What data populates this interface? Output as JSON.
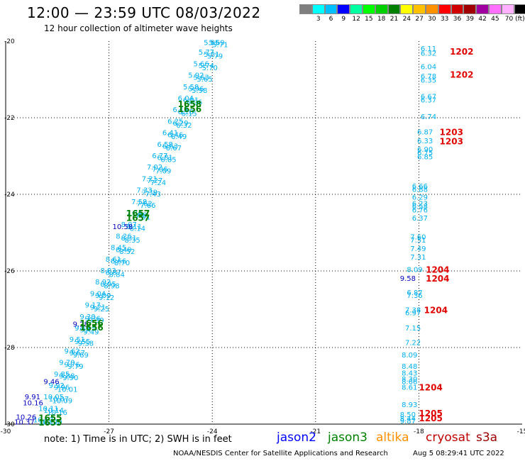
{
  "header": {
    "title": "12:00 — 23:59 UTC 08/03/2022",
    "subtitle": "12 hour collection of altimeter wave heights"
  },
  "colorbar": {
    "colors": [
      "#7f7f7f",
      "#00ffff",
      "#00bfff",
      "#0000ff",
      "#00ffa0",
      "#00ff00",
      "#00d000",
      "#008000",
      "#ffff00",
      "#ffc000",
      "#ff9000",
      "#ff0000",
      "#d00000",
      "#a00000",
      "#a000a0",
      "#ff70ff",
      "#ffb0ff",
      "#000000"
    ],
    "labels": [
      "3",
      "6",
      "9",
      "12",
      "15",
      "18",
      "21",
      "24",
      "27",
      "30",
      "33",
      "36",
      "39",
      "42",
      "45",
      "70 (ft)"
    ]
  },
  "footer": {
    "note": "note:  1) Time is in UTC;  2) SWH is in feet",
    "credit": "NOAA/NESDIS Center for Satellite Applications and Research",
    "generated": "Aug  5 08:29:41 UTC 2022",
    "satellites": [
      {
        "name": "jason2",
        "color": "#0000ff"
      },
      {
        "name": "jason3",
        "color": "#008000"
      },
      {
        "name": "altika",
        "color": "#ff9000"
      },
      {
        "name": "cryosat",
        "color": "#c00000"
      },
      {
        "name": "s3a",
        "color": "#a00000"
      }
    ]
  },
  "chart_data": {
    "type": "scatter",
    "xlim": [
      -30,
      -15
    ],
    "ylim": [
      -30,
      -20
    ],
    "xticks": [
      "-30",
      "-27",
      "-24",
      "-21",
      "-18",
      "-15"
    ],
    "yticks": [
      "-20",
      "-22",
      "-24",
      "-26",
      "-28",
      "-30"
    ],
    "grid": true,
    "track_labels": [
      {
        "x": -25.0,
        "y": -21.65,
        "text": "1658",
        "color": "#008000"
      },
      {
        "x": -25.0,
        "y": -21.78,
        "text": "1656",
        "color": "#008000"
      },
      {
        "x": -26.5,
        "y": -24.5,
        "text": "1657",
        "color": "#008000"
      },
      {
        "x": -26.5,
        "y": -24.62,
        "text": "1657",
        "color": "#008000"
      },
      {
        "x": -27.85,
        "y": -27.37,
        "text": "1656",
        "color": "#008000"
      },
      {
        "x": -27.85,
        "y": -27.48,
        "text": "1656",
        "color": "#008000"
      },
      {
        "x": -29.05,
        "y": -29.84,
        "text": "1655",
        "color": "#008000"
      },
      {
        "x": -29.05,
        "y": -29.96,
        "text": "1655",
        "color": "#008000"
      },
      {
        "x": -17.1,
        "y": -20.28,
        "text": "1202",
        "color": "#e00000"
      },
      {
        "x": -17.1,
        "y": -20.88,
        "text": "1202",
        "color": "#e00000"
      },
      {
        "x": -17.4,
        "y": -22.38,
        "text": "1203",
        "color": "#e00000"
      },
      {
        "x": -17.4,
        "y": -22.62,
        "text": "1203",
        "color": "#e00000"
      },
      {
        "x": -17.8,
        "y": -25.97,
        "text": "1204",
        "color": "#e00000"
      },
      {
        "x": -17.8,
        "y": -26.2,
        "text": "1204",
        "color": "#e00000"
      },
      {
        "x": -17.85,
        "y": -27.03,
        "text": "1204",
        "color": "#e00000"
      },
      {
        "x": -18.0,
        "y": -29.05,
        "text": "1204",
        "color": "#e00000"
      },
      {
        "x": -18.0,
        "y": -29.72,
        "text": "1205",
        "color": "#e00000"
      },
      {
        "x": -18.0,
        "y": -29.85,
        "text": "1205",
        "color": "#e00000"
      }
    ],
    "series": [
      {
        "color": "#00b0f0",
        "points": [
          {
            "x": -17.95,
            "y": -20.2,
            "value": "6.11"
          },
          {
            "x": -17.95,
            "y": -20.32,
            "value": "6.32"
          },
          {
            "x": -17.95,
            "y": -20.68,
            "value": "6.04"
          },
          {
            "x": -17.95,
            "y": -20.93,
            "value": "6.78"
          },
          {
            "x": -17.95,
            "y": -21.03,
            "value": "6.35"
          },
          {
            "x": -17.95,
            "y": -21.45,
            "value": "6.67"
          },
          {
            "x": -17.95,
            "y": -21.55,
            "value": "6.37"
          },
          {
            "x": -17.95,
            "y": -21.98,
            "value": "6.74"
          },
          {
            "x": -18.05,
            "y": -22.38,
            "value": "6.87"
          },
          {
            "x": -18.05,
            "y": -22.61,
            "value": "6.33"
          },
          {
            "x": -18.05,
            "y": -22.83,
            "value": "6.90"
          },
          {
            "x": -18.05,
            "y": -22.93,
            "value": "6.75"
          },
          {
            "x": -18.05,
            "y": -23.03,
            "value": "6.85"
          },
          {
            "x": -18.2,
            "y": -23.8,
            "value": "6.66"
          },
          {
            "x": -18.2,
            "y": -23.88,
            "value": "6.88"
          },
          {
            "x": -18.2,
            "y": -24.08,
            "value": "6.29"
          },
          {
            "x": -18.2,
            "y": -24.25,
            "value": "6.23"
          },
          {
            "x": -18.2,
            "y": -24.32,
            "value": "6.58"
          },
          {
            "x": -18.2,
            "y": -24.42,
            "value": "6.76"
          },
          {
            "x": -18.2,
            "y": -24.63,
            "value": "6.37"
          },
          {
            "x": -18.25,
            "y": -25.12,
            "value": "7.60"
          },
          {
            "x": -18.25,
            "y": -25.2,
            "value": "7.51"
          },
          {
            "x": -18.25,
            "y": -25.43,
            "value": "7.49"
          },
          {
            "x": -18.25,
            "y": -25.65,
            "value": "7.31"
          },
          {
            "x": -18.35,
            "y": -25.97,
            "value": "8.09"
          },
          {
            "x": -18.35,
            "y": -26.57,
            "value": "6.87"
          },
          {
            "x": -18.35,
            "y": -26.65,
            "value": "7.36"
          },
          {
            "x": -18.4,
            "y": -27.03,
            "value": "7.38"
          },
          {
            "x": -18.4,
            "y": -27.1,
            "value": "6.97"
          },
          {
            "x": -18.4,
            "y": -27.5,
            "value": "7.15"
          },
          {
            "x": -18.4,
            "y": -27.88,
            "value": "7.22"
          },
          {
            "x": -18.5,
            "y": -28.2,
            "value": "8.09"
          },
          {
            "x": -18.5,
            "y": -28.5,
            "value": "8.48"
          },
          {
            "x": -18.5,
            "y": -28.68,
            "value": "8.43"
          },
          {
            "x": -18.5,
            "y": -28.83,
            "value": "8.30"
          },
          {
            "x": -18.5,
            "y": -28.9,
            "value": "8.66"
          },
          {
            "x": -18.5,
            "y": -29.05,
            "value": "8.61"
          },
          {
            "x": -18.5,
            "y": -29.5,
            "value": "8.93"
          },
          {
            "x": -18.55,
            "y": -29.76,
            "value": "8.50"
          },
          {
            "x": -18.55,
            "y": -29.86,
            "value": "8.44"
          },
          {
            "x": -18.55,
            "y": -29.93,
            "value": "9.87"
          },
          {
            "x": -24.25,
            "y": -20.05,
            "value": "5.85"
          },
          {
            "x": -24.4,
            "y": -20.3,
            "value": "5.77"
          },
          {
            "x": -24.55,
            "y": -20.6,
            "value": "5.66"
          },
          {
            "x": -24.7,
            "y": -20.9,
            "value": "5.92"
          },
          {
            "x": -24.85,
            "y": -21.2,
            "value": "5.58"
          },
          {
            "x": -25.0,
            "y": -21.5,
            "value": "6.04"
          },
          {
            "x": -25.15,
            "y": -21.8,
            "value": "6.12"
          },
          {
            "x": -25.3,
            "y": -22.1,
            "value": "6.25"
          },
          {
            "x": -25.45,
            "y": -22.4,
            "value": "6.41"
          },
          {
            "x": -25.6,
            "y": -22.7,
            "value": "6.58"
          },
          {
            "x": -25.75,
            "y": -23.0,
            "value": "6.77"
          },
          {
            "x": -25.9,
            "y": -23.3,
            "value": "7.02"
          },
          {
            "x": -26.05,
            "y": -23.6,
            "value": "7.21"
          },
          {
            "x": -26.2,
            "y": -23.9,
            "value": "7.33"
          },
          {
            "x": -26.35,
            "y": -24.2,
            "value": "7.58"
          },
          {
            "x": -26.5,
            "y": -24.5,
            "value": "7.84"
          },
          {
            "x": -26.65,
            "y": -24.8,
            "value": "8.07"
          },
          {
            "x": -26.8,
            "y": -25.1,
            "value": "8.26"
          },
          {
            "x": -26.95,
            "y": -25.4,
            "value": "8.45"
          },
          {
            "x": -27.1,
            "y": -25.7,
            "value": "8.61"
          },
          {
            "x": -27.25,
            "y": -26.0,
            "value": "8.83"
          },
          {
            "x": -27.4,
            "y": -26.3,
            "value": "8.92"
          },
          {
            "x": -27.55,
            "y": -26.6,
            "value": "9.04"
          },
          {
            "x": -27.7,
            "y": -26.9,
            "value": "9.17"
          },
          {
            "x": -27.85,
            "y": -27.2,
            "value": "9.30"
          },
          {
            "x": -28.0,
            "y": -27.5,
            "value": "9.44"
          },
          {
            "x": -28.15,
            "y": -27.8,
            "value": "9.51"
          },
          {
            "x": -28.3,
            "y": -28.1,
            "value": "9.62"
          },
          {
            "x": -28.45,
            "y": -28.4,
            "value": "9.70"
          },
          {
            "x": -28.6,
            "y": -28.7,
            "value": "9.85"
          },
          {
            "x": -28.75,
            "y": -29.0,
            "value": "9.92"
          },
          {
            "x": -28.9,
            "y": -29.3,
            "value": "10.05"
          },
          {
            "x": -29.05,
            "y": -29.6,
            "value": "10.11"
          },
          {
            "x": -29.2,
            "y": -29.9,
            "value": "10.17"
          },
          {
            "x": -24.1,
            "y": -20.05,
            "value": "5.69"
          },
          {
            "x": -24.25,
            "y": -20.35,
            "value": "5.81"
          },
          {
            "x": -24.4,
            "y": -20.65,
            "value": "5.74"
          },
          {
            "x": -24.55,
            "y": -20.95,
            "value": "5.63"
          },
          {
            "x": -24.7,
            "y": -21.25,
            "value": "5.96"
          },
          {
            "x": -24.85,
            "y": -21.55,
            "value": "6.01"
          },
          {
            "x": -25.0,
            "y": -21.85,
            "value": "6.18"
          },
          {
            "x": -25.15,
            "y": -22.15,
            "value": "6.29"
          },
          {
            "x": -25.3,
            "y": -22.45,
            "value": "6.46"
          },
          {
            "x": -25.45,
            "y": -22.75,
            "value": "6.63"
          },
          {
            "x": -25.6,
            "y": -23.05,
            "value": "6.81"
          },
          {
            "x": -25.75,
            "y": -23.35,
            "value": "7.06"
          },
          {
            "x": -25.9,
            "y": -23.65,
            "value": "7.27"
          },
          {
            "x": -26.05,
            "y": -23.95,
            "value": "7.39"
          },
          {
            "x": -26.2,
            "y": -24.25,
            "value": "7.62"
          },
          {
            "x": -26.35,
            "y": -24.55,
            "value": "7.88"
          },
          {
            "x": -26.5,
            "y": -24.85,
            "value": "8.11"
          },
          {
            "x": -26.65,
            "y": -25.15,
            "value": "8.31"
          },
          {
            "x": -26.8,
            "y": -25.45,
            "value": "8.49"
          },
          {
            "x": -26.95,
            "y": -25.75,
            "value": "8.66"
          },
          {
            "x": -27.1,
            "y": -26.05,
            "value": "8.87"
          },
          {
            "x": -27.25,
            "y": -26.35,
            "value": "8.95"
          },
          {
            "x": -27.4,
            "y": -26.65,
            "value": "9.09"
          },
          {
            "x": -27.55,
            "y": -26.95,
            "value": "9.21"
          },
          {
            "x": -27.7,
            "y": -27.25,
            "value": "9.36"
          },
          {
            "x": -27.85,
            "y": -27.55,
            "value": "9.47"
          },
          {
            "x": -28.0,
            "y": -27.85,
            "value": "9.55"
          },
          {
            "x": -28.15,
            "y": -28.15,
            "value": "9.67"
          },
          {
            "x": -28.3,
            "y": -28.45,
            "value": "9.76"
          },
          {
            "x": -28.45,
            "y": -28.75,
            "value": "9.88"
          },
          {
            "x": -28.6,
            "y": -29.05,
            "value": "9.96"
          },
          {
            "x": -28.75,
            "y": -29.35,
            "value": "10.07"
          },
          {
            "x": -28.9,
            "y": -29.65,
            "value": "10.14"
          },
          {
            "x": -29.05,
            "y": -29.95,
            "value": "10.22"
          },
          {
            "x": -24.0,
            "y": -20.1,
            "value": "5.71"
          },
          {
            "x": -24.15,
            "y": -20.4,
            "value": "5.79"
          },
          {
            "x": -24.3,
            "y": -20.7,
            "value": "5.70"
          },
          {
            "x": -24.45,
            "y": -21.0,
            "value": "5.65"
          },
          {
            "x": -24.6,
            "y": -21.3,
            "value": "5.98"
          },
          {
            "x": -24.75,
            "y": -21.6,
            "value": "6.06"
          },
          {
            "x": -24.9,
            "y": -21.9,
            "value": "6.15"
          },
          {
            "x": -25.05,
            "y": -22.2,
            "value": "6.32"
          },
          {
            "x": -25.2,
            "y": -22.5,
            "value": "6.49"
          },
          {
            "x": -25.35,
            "y": -22.8,
            "value": "6.67"
          },
          {
            "x": -25.5,
            "y": -23.1,
            "value": "6.85"
          },
          {
            "x": -25.65,
            "y": -23.4,
            "value": "7.09"
          },
          {
            "x": -25.8,
            "y": -23.7,
            "value": "7.24"
          },
          {
            "x": -25.95,
            "y": -24.0,
            "value": "7.43"
          },
          {
            "x": -26.1,
            "y": -24.3,
            "value": "7.66"
          },
          {
            "x": -26.25,
            "y": -24.6,
            "value": "7.91"
          },
          {
            "x": -26.4,
            "y": -24.9,
            "value": "8.14"
          },
          {
            "x": -26.55,
            "y": -25.2,
            "value": "8.35"
          },
          {
            "x": -26.7,
            "y": -25.5,
            "value": "8.52"
          },
          {
            "x": -26.85,
            "y": -25.8,
            "value": "8.70"
          },
          {
            "x": -27.0,
            "y": -26.1,
            "value": "8.84"
          },
          {
            "x": -27.15,
            "y": -26.4,
            "value": "8.98"
          },
          {
            "x": -27.3,
            "y": -26.7,
            "value": "9.12"
          },
          {
            "x": -27.45,
            "y": -27.0,
            "value": "9.25"
          },
          {
            "x": -27.6,
            "y": -27.3,
            "value": "9.39"
          },
          {
            "x": -27.75,
            "y": -27.6,
            "value": "9.49"
          },
          {
            "x": -27.9,
            "y": -27.9,
            "value": "9.58"
          },
          {
            "x": -28.05,
            "y": -28.2,
            "value": "9.69"
          },
          {
            "x": -28.2,
            "y": -28.5,
            "value": "9.79"
          },
          {
            "x": -28.35,
            "y": -28.8,
            "value": "9.90"
          },
          {
            "x": -28.5,
            "y": -29.1,
            "value": "10.01"
          },
          {
            "x": -28.65,
            "y": -29.4,
            "value": "10.09"
          },
          {
            "x": -28.8,
            "y": -29.7,
            "value": "10.16"
          },
          {
            "x": -28.95,
            "y": -29.95,
            "value": "10.20"
          }
        ]
      },
      {
        "color": "#0000c0",
        "points": [
          {
            "x": -18.55,
            "y": -26.2,
            "value": "9.58"
          },
          {
            "x": -26.9,
            "y": -24.85,
            "value": "10.58"
          },
          {
            "x": -28.05,
            "y": -27.4,
            "value": "9.28"
          },
          {
            "x": -28.9,
            "y": -28.9,
            "value": "9.46"
          },
          {
            "x": -29.45,
            "y": -29.3,
            "value": "9.91"
          },
          {
            "x": -29.5,
            "y": -29.45,
            "value": "10.16"
          },
          {
            "x": -29.7,
            "y": -29.82,
            "value": "10.26"
          },
          {
            "x": -29.75,
            "y": -29.95,
            "value": "10.37"
          }
        ]
      }
    ]
  }
}
